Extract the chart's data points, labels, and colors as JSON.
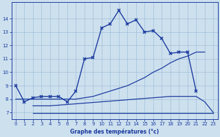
{
  "xlabel": "Graphe des températures (°c)",
  "background_color": "#cde0ee",
  "line_color": "#1a3a9e",
  "grid_color": "#a0c0d8",
  "xlim": [
    -0.5,
    23.5
  ],
  "ylim": [
    6.5,
    15.2
  ],
  "yticks": [
    7,
    8,
    9,
    10,
    11,
    12,
    13,
    14
  ],
  "xticks": [
    0,
    1,
    2,
    3,
    4,
    5,
    6,
    7,
    8,
    9,
    10,
    11,
    12,
    13,
    14,
    15,
    16,
    17,
    18,
    19,
    20,
    21,
    22,
    23
  ],
  "line1_x": [
    0,
    1,
    2,
    3,
    4,
    5,
    6,
    7,
    8,
    9,
    10,
    11,
    12,
    13,
    14,
    15,
    16,
    17,
    18,
    19,
    20,
    21
  ],
  "line1_y": [
    9.0,
    7.8,
    8.1,
    8.2,
    8.2,
    8.2,
    7.8,
    8.6,
    11.0,
    11.1,
    13.3,
    13.6,
    14.6,
    13.6,
    13.9,
    13.0,
    13.1,
    12.5,
    11.4,
    11.5,
    11.5,
    8.6
  ],
  "line2_x": [
    0,
    1,
    2,
    3,
    4,
    5,
    6,
    7,
    8,
    9,
    10,
    11,
    12,
    13,
    14,
    15,
    16,
    17,
    18,
    19,
    20,
    21,
    22
  ],
  "line2_y": [
    8.0,
    8.0,
    8.0,
    8.0,
    8.0,
    8.0,
    8.0,
    8.0,
    8.1,
    8.2,
    8.4,
    8.6,
    8.8,
    9.0,
    9.3,
    9.6,
    10.0,
    10.3,
    10.7,
    11.0,
    11.2,
    11.5,
    11.5
  ],
  "line3_x": [
    2,
    3,
    4,
    5,
    6,
    7,
    8,
    9,
    10,
    11,
    12,
    13,
    14,
    15,
    16,
    17,
    18,
    19,
    20,
    21,
    22,
    23
  ],
  "line3_y": [
    7.5,
    7.5,
    7.5,
    7.55,
    7.6,
    7.65,
    7.7,
    7.75,
    7.8,
    7.85,
    7.9,
    7.95,
    8.0,
    8.05,
    8.1,
    8.15,
    8.2,
    8.2,
    8.2,
    8.2,
    7.8,
    7.0
  ],
  "line4_x": [
    2,
    3,
    4,
    5,
    6,
    7,
    8,
    9,
    10,
    11,
    12,
    13,
    14,
    15,
    16,
    17,
    18,
    19,
    20,
    21,
    22,
    23
  ],
  "line4_y": [
    6.95,
    6.95,
    6.95,
    6.95,
    6.95,
    6.95,
    6.95,
    6.95,
    6.95,
    6.95,
    6.95,
    6.95,
    6.95,
    6.95,
    6.95,
    6.95,
    6.95,
    6.95,
    6.95,
    6.95,
    6.95,
    6.95
  ]
}
